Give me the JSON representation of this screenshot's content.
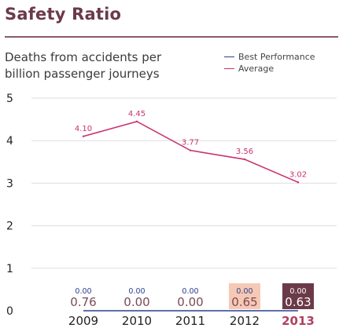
{
  "title": "Safety Ratio",
  "subtitle_lines": [
    "Deaths from accidents per",
    "billion passenger journeys"
  ],
  "colors": {
    "title": "#6b3a48",
    "best": "#2a3f8f",
    "average": "#c8336f",
    "grid": "#dddddd",
    "highlight_light": "#f6c9b5",
    "highlight_dark": "#6b3a48"
  },
  "chart_data": {
    "type": "line",
    "x": [
      "2009",
      "2010",
      "2011",
      "2012",
      "2013"
    ],
    "ylim": [
      0,
      5
    ],
    "yticks": [
      "0",
      "1",
      "2",
      "3",
      "4",
      "5"
    ],
    "grid": true,
    "legend_position": "top-right",
    "series": [
      {
        "name": "Best Performance",
        "values": [
          0.0,
          0.0,
          0.0,
          0.0,
          0.0
        ],
        "labels": [
          "0.00",
          "0.00",
          "0.00",
          "0.00",
          "0.00"
        ],
        "color": "#2a3f8f"
      },
      {
        "name": "Average",
        "values": [
          4.1,
          4.45,
          3.77,
          3.56,
          3.02
        ],
        "labels": [
          "4.10",
          "4.45",
          "3.77",
          "3.56",
          "3.02"
        ],
        "color": "#c8336f"
      }
    ],
    "annotations": {
      "values": [
        "0.76",
        "0.00",
        "0.00",
        "0.65",
        "0.63"
      ],
      "highlight": [
        "none",
        "none",
        "none",
        "light",
        "dark"
      ]
    },
    "highlight_year": "2013"
  }
}
